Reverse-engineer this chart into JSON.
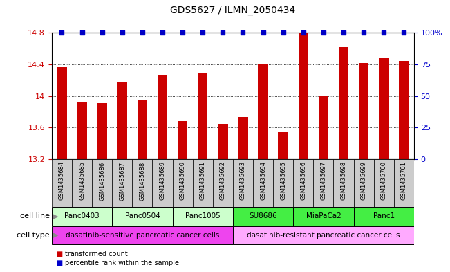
{
  "title": "GDS5627 / ILMN_2050434",
  "samples": [
    "GSM1435684",
    "GSM1435685",
    "GSM1435686",
    "GSM1435687",
    "GSM1435688",
    "GSM1435689",
    "GSM1435690",
    "GSM1435691",
    "GSM1435692",
    "GSM1435693",
    "GSM1435694",
    "GSM1435695",
    "GSM1435696",
    "GSM1435697",
    "GSM1435698",
    "GSM1435699",
    "GSM1435700",
    "GSM1435701"
  ],
  "values": [
    14.36,
    13.93,
    13.91,
    14.17,
    13.95,
    14.26,
    13.68,
    14.29,
    13.65,
    13.73,
    14.41,
    13.55,
    14.79,
    14.0,
    14.62,
    14.42,
    14.48,
    14.44
  ],
  "bar_color": "#cc0000",
  "dot_color": "#0000cc",
  "ymin": 13.2,
  "ymax": 14.8,
  "yticks": [
    13.2,
    13.6,
    14.0,
    14.4,
    14.8
  ],
  "yticklabels": [
    "13.2",
    "13.6",
    "14",
    "14.4",
    "14.8"
  ],
  "right_yticks_pct": [
    0,
    25,
    50,
    75,
    100
  ],
  "right_yticklabels": [
    "0",
    "25",
    "50",
    "75",
    "100%"
  ],
  "cell_lines": [
    {
      "label": "Panc0403",
      "start": 0,
      "end": 2,
      "color": "#ccffcc"
    },
    {
      "label": "Panc0504",
      "start": 3,
      "end": 5,
      "color": "#ccffcc"
    },
    {
      "label": "Panc1005",
      "start": 6,
      "end": 8,
      "color": "#ccffcc"
    },
    {
      "label": "SU8686",
      "start": 9,
      "end": 11,
      "color": "#44ee44"
    },
    {
      "label": "MiaPaCa2",
      "start": 12,
      "end": 14,
      "color": "#44ee44"
    },
    {
      "label": "Panc1",
      "start": 15,
      "end": 17,
      "color": "#44ee44"
    }
  ],
  "cell_types": [
    {
      "label": "dasatinib-sensitive pancreatic cancer cells",
      "start": 0,
      "end": 8,
      "color": "#ee44ee"
    },
    {
      "label": "dasatinib-resistant pancreatic cancer cells",
      "start": 9,
      "end": 17,
      "color": "#ffaaff"
    }
  ],
  "legend_items": [
    {
      "label": "transformed count",
      "color": "#cc0000"
    },
    {
      "label": "percentile rank within the sample",
      "color": "#0000cc"
    }
  ],
  "cell_line_label": "cell line",
  "cell_type_label": "cell type",
  "background_color": "#ffffff",
  "tick_color_left": "#cc0000",
  "tick_color_right": "#0000cc",
  "sample_box_color": "#cccccc",
  "bar_width": 0.5
}
